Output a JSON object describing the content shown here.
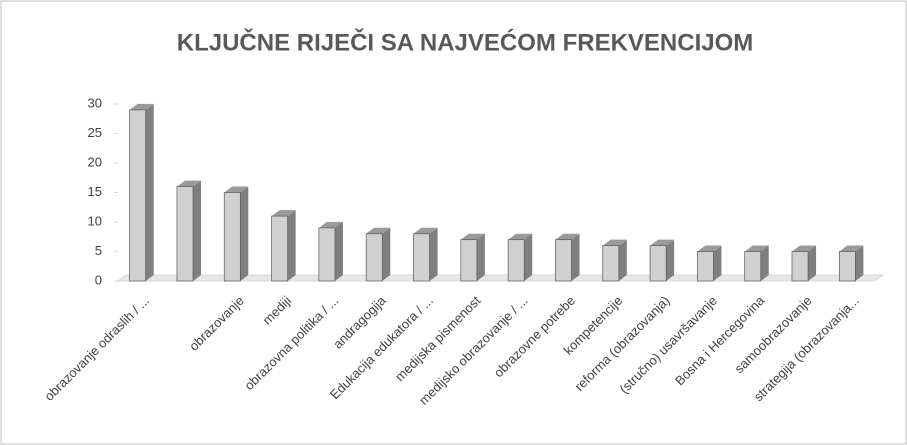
{
  "chart_data": {
    "type": "bar3d",
    "title": "KLJUČNE RIJEČI SA NAJVEĆOM FREKVENCIJOM",
    "categories": [
      "obrazovanje odraslih / ...",
      null,
      "obrazovanje",
      "mediji",
      "obrazovna politika / ...",
      "andragogija",
      "Edukacija edukatora / ...",
      "medijska pismenost",
      "medijsko obrazovanje / ...",
      "obrazovne potrebe",
      "kompetencije",
      "reforma (obrazovanja)",
      "(stručno) usavršavanje",
      "Bosna i Hercegovina",
      "samoobrazovanje",
      "strategija (obrazovanja..."
    ],
    "values": [
      29,
      16,
      15,
      11,
      9,
      8,
      8,
      7,
      7,
      7,
      6,
      6,
      5,
      5,
      5,
      5
    ],
    "color": "#d0d0d0",
    "ylim": [
      0,
      30
    ],
    "yticks": [
      0,
      5,
      10,
      15,
      20,
      25,
      30
    ]
  }
}
